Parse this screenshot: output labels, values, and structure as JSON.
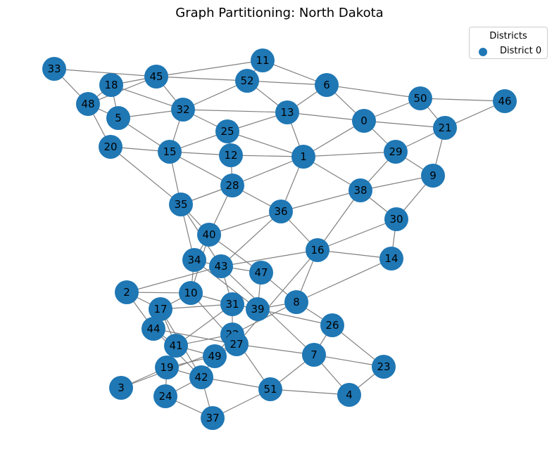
{
  "title": "Graph Partitioning: North Dakota",
  "legend": {
    "title": "Districts",
    "entries": [
      {
        "label": "District 0",
        "color": "#1f77b4"
      }
    ]
  },
  "node_color": "#1f77b4",
  "edge_color": "#808080",
  "nodes": [
    "0",
    "1",
    "2",
    "3",
    "4",
    "5",
    "6",
    "7",
    "8",
    "9",
    "10",
    "11",
    "12",
    "13",
    "14",
    "15",
    "16",
    "17",
    "18",
    "19",
    "20",
    "21",
    "22",
    "23",
    "24",
    "25",
    "26",
    "27",
    "28",
    "29",
    "30",
    "31",
    "32",
    "33",
    "34",
    "35",
    "36",
    "37",
    "38",
    "39",
    "40",
    "41",
    "42",
    "43",
    "44",
    "45",
    "46",
    "47",
    "48",
    "49",
    "50",
    "51",
    "52"
  ],
  "edges": [
    [
      "33",
      "45"
    ],
    [
      "33",
      "48"
    ],
    [
      "18",
      "45"
    ],
    [
      "18",
      "48"
    ],
    [
      "18",
      "5"
    ],
    [
      "18",
      "32"
    ],
    [
      "48",
      "45"
    ],
    [
      "48",
      "5"
    ],
    [
      "48",
      "20"
    ],
    [
      "45",
      "32"
    ],
    [
      "45",
      "11"
    ],
    [
      "45",
      "52"
    ],
    [
      "11",
      "52"
    ],
    [
      "11",
      "6"
    ],
    [
      "52",
      "6"
    ],
    [
      "52",
      "32"
    ],
    [
      "52",
      "13"
    ],
    [
      "6",
      "13"
    ],
    [
      "6",
      "0"
    ],
    [
      "6",
      "50"
    ],
    [
      "5",
      "32"
    ],
    [
      "5",
      "15"
    ],
    [
      "20",
      "15"
    ],
    [
      "20",
      "35"
    ],
    [
      "32",
      "25"
    ],
    [
      "32",
      "15"
    ],
    [
      "32",
      "13"
    ],
    [
      "25",
      "13"
    ],
    [
      "25",
      "15"
    ],
    [
      "25",
      "12"
    ],
    [
      "25",
      "1"
    ],
    [
      "15",
      "12"
    ],
    [
      "15",
      "28"
    ],
    [
      "15",
      "35"
    ],
    [
      "12",
      "1"
    ],
    [
      "12",
      "28"
    ],
    [
      "13",
      "0"
    ],
    [
      "13",
      "1"
    ],
    [
      "0",
      "1"
    ],
    [
      "0",
      "50"
    ],
    [
      "0",
      "21"
    ],
    [
      "0",
      "29"
    ],
    [
      "50",
      "46"
    ],
    [
      "50",
      "21"
    ],
    [
      "46",
      "21"
    ],
    [
      "21",
      "29"
    ],
    [
      "21",
      "9"
    ],
    [
      "1",
      "29"
    ],
    [
      "1",
      "38"
    ],
    [
      "1",
      "28"
    ],
    [
      "1",
      "36"
    ],
    [
      "29",
      "9"
    ],
    [
      "29",
      "38"
    ],
    [
      "9",
      "38"
    ],
    [
      "9",
      "30"
    ],
    [
      "28",
      "35"
    ],
    [
      "28",
      "36"
    ],
    [
      "28",
      "40"
    ],
    [
      "38",
      "36"
    ],
    [
      "38",
      "30"
    ],
    [
      "38",
      "16"
    ],
    [
      "36",
      "40"
    ],
    [
      "36",
      "16"
    ],
    [
      "36",
      "43"
    ],
    [
      "35",
      "40"
    ],
    [
      "35",
      "34"
    ],
    [
      "35",
      "43"
    ],
    [
      "30",
      "16"
    ],
    [
      "30",
      "14"
    ],
    [
      "40",
      "34"
    ],
    [
      "40",
      "47"
    ],
    [
      "40",
      "10"
    ],
    [
      "16",
      "43"
    ],
    [
      "16",
      "14"
    ],
    [
      "16",
      "8"
    ],
    [
      "16",
      "27"
    ],
    [
      "14",
      "8"
    ],
    [
      "34",
      "43"
    ],
    [
      "34",
      "10"
    ],
    [
      "34",
      "39"
    ],
    [
      "43",
      "47"
    ],
    [
      "43",
      "31"
    ],
    [
      "43",
      "7"
    ],
    [
      "43",
      "2"
    ],
    [
      "47",
      "39"
    ],
    [
      "47",
      "8"
    ],
    [
      "2",
      "10"
    ],
    [
      "2",
      "17"
    ],
    [
      "2",
      "44"
    ],
    [
      "10",
      "31"
    ],
    [
      "10",
      "17"
    ],
    [
      "10",
      "27"
    ],
    [
      "17",
      "31"
    ],
    [
      "17",
      "41"
    ],
    [
      "17",
      "42"
    ],
    [
      "31",
      "39"
    ],
    [
      "31",
      "22"
    ],
    [
      "31",
      "41"
    ],
    [
      "39",
      "8"
    ],
    [
      "39",
      "26"
    ],
    [
      "8",
      "26"
    ],
    [
      "8",
      "22"
    ],
    [
      "26",
      "7"
    ],
    [
      "26",
      "23"
    ],
    [
      "22",
      "27"
    ],
    [
      "22",
      "41"
    ],
    [
      "22",
      "49"
    ],
    [
      "22",
      "51"
    ],
    [
      "27",
      "44"
    ],
    [
      "27",
      "7"
    ],
    [
      "27",
      "49"
    ],
    [
      "7",
      "23"
    ],
    [
      "7",
      "51"
    ],
    [
      "7",
      "4"
    ],
    [
      "23",
      "4"
    ],
    [
      "44",
      "41"
    ],
    [
      "44",
      "42"
    ],
    [
      "41",
      "19"
    ],
    [
      "41",
      "49"
    ],
    [
      "49",
      "19"
    ],
    [
      "49",
      "42"
    ],
    [
      "19",
      "3"
    ],
    [
      "19",
      "24"
    ],
    [
      "19",
      "42"
    ],
    [
      "3",
      "27"
    ],
    [
      "42",
      "24"
    ],
    [
      "42",
      "51"
    ],
    [
      "42",
      "37"
    ],
    [
      "24",
      "37"
    ],
    [
      "37",
      "51"
    ],
    [
      "51",
      "4"
    ]
  ]
}
